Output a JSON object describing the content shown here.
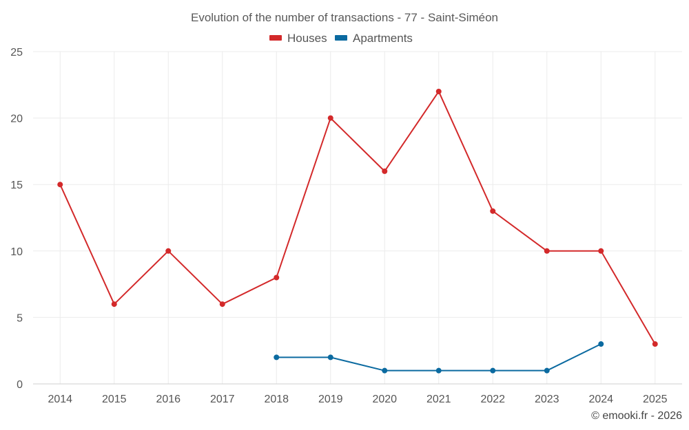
{
  "chart_data": {
    "type": "line",
    "title": "Evolution of the number of transactions - 77 - Saint-Siméon",
    "categories": [
      "2014",
      "2015",
      "2016",
      "2017",
      "2018",
      "2019",
      "2020",
      "2021",
      "2022",
      "2023",
      "2024",
      "2025"
    ],
    "yticks": [
      "0",
      "5",
      "10",
      "15",
      "20",
      "25"
    ],
    "ylim": [
      0,
      25
    ],
    "series": [
      {
        "name": "Houses",
        "color": "#d3292a",
        "values": [
          15,
          6,
          10,
          6,
          8,
          20,
          16,
          22,
          13,
          10,
          10,
          3
        ]
      },
      {
        "name": "Apartments",
        "color": "#0b6aa0",
        "values": [
          null,
          null,
          null,
          null,
          2,
          2,
          1,
          1,
          1,
          1,
          3,
          null
        ]
      }
    ],
    "legend_position": "top-center",
    "grid": true
  },
  "credit": "© emooki.fr - 2026"
}
